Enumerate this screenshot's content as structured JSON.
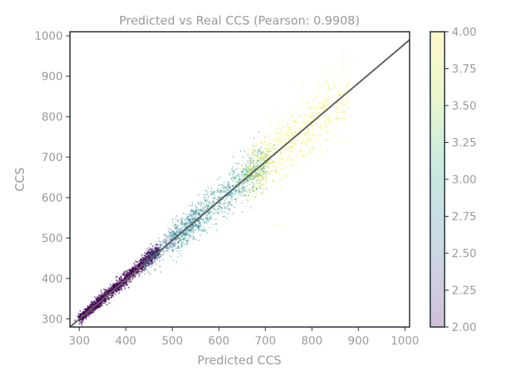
{
  "chart_data": {
    "type": "scatter",
    "title": "Predicted vs Real CCS (Pearson: 0.9908)",
    "xlabel": "Predicted CCS",
    "ylabel": "CCS",
    "xlim": [
      280,
      1010
    ],
    "ylim": [
      280,
      1010
    ],
    "xticks": [
      300,
      400,
      500,
      600,
      700,
      800,
      900,
      1000
    ],
    "yticks": [
      300,
      400,
      500,
      600,
      700,
      800,
      900,
      1000
    ],
    "grid": false,
    "reference_line": {
      "x": [
        280,
        1010
      ],
      "y": [
        280,
        990
      ],
      "color": "#606060"
    },
    "colorbar": {
      "label": "",
      "range": [
        2.0,
        4.0
      ],
      "ticks": [
        "2.00",
        "2.25",
        "2.50",
        "2.75",
        "3.00",
        "3.25",
        "3.50",
        "3.75",
        "4.00"
      ],
      "colormap": "viridis",
      "alpha": 0.25
    },
    "series": [
      {
        "color_value": 2.0,
        "x_range": [
          300,
          470
        ],
        "center_slope": 1.0,
        "spread": 10,
        "count": 1400,
        "color": "#440154"
      },
      {
        "color_value": 2.6,
        "x_range": [
          440,
          560
        ],
        "center_slope": 0.98,
        "spread": 16,
        "count": 400,
        "color": "#31688e"
      },
      {
        "color_value": 3.1,
        "x_range": [
          500,
          700
        ],
        "center_slope": 0.97,
        "spread": 22,
        "count": 900,
        "color": "#21908d"
      },
      {
        "color_value": 3.5,
        "x_range": [
          640,
          720
        ],
        "center_slope": 0.97,
        "spread": 20,
        "count": 150,
        "color": "#5ec962"
      },
      {
        "color_value": 4.0,
        "x_range": [
          660,
          880
        ],
        "center_slope": 0.97,
        "spread": 30,
        "count": 700,
        "color": "#fde725"
      }
    ]
  },
  "colors": {
    "axis": "#1f2a36",
    "text": "#9a9a9a",
    "line": "#606060"
  }
}
